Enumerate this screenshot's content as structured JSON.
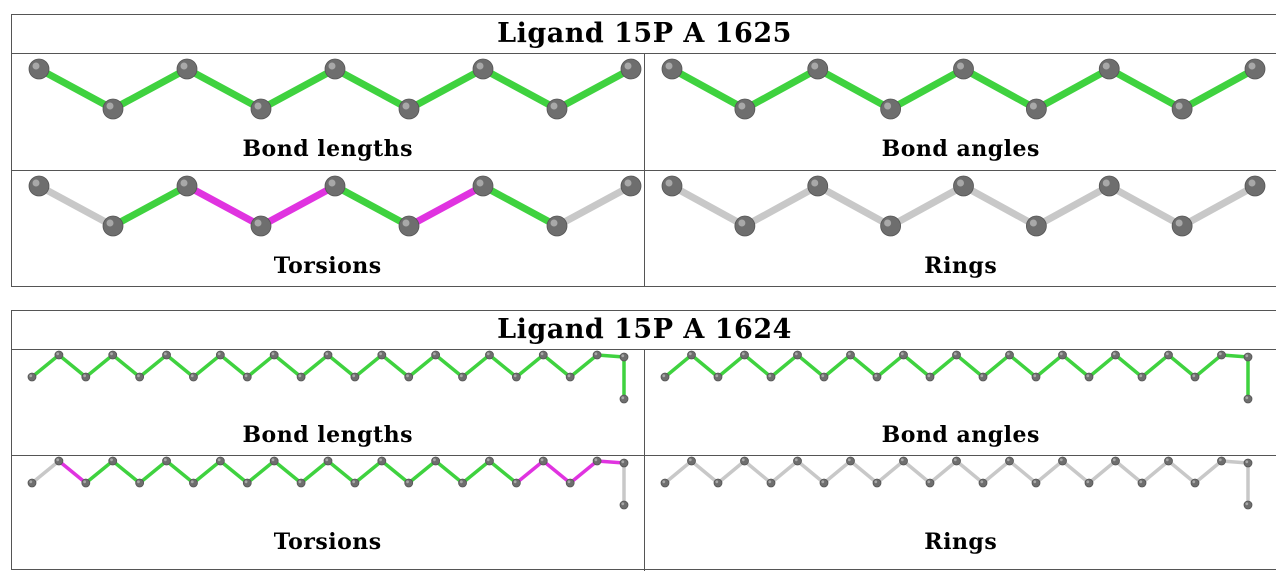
{
  "tables": [
    {
      "title": "Ligand 15P A 1625",
      "panels": [
        {
          "label": "Bond lengths",
          "bonds": [
            "green",
            "green",
            "green",
            "green",
            "green",
            "green",
            "green",
            "green"
          ],
          "tail": false
        },
        {
          "label": "Bond angles",
          "bonds": [
            "green",
            "green",
            "green",
            "green",
            "green",
            "green",
            "green",
            "green"
          ],
          "tail": false
        },
        {
          "label": "Torsions",
          "bonds": [
            "grey",
            "green",
            "magenta",
            "magenta",
            "green",
            "magenta",
            "green",
            "grey"
          ],
          "tail": false
        },
        {
          "label": "Rings",
          "bonds": [
            "grey",
            "grey",
            "grey",
            "grey",
            "grey",
            "grey",
            "grey",
            "grey"
          ],
          "tail": false
        }
      ]
    },
    {
      "title": "Ligand 15P A 1624",
      "panels": [
        {
          "label": "Bond lengths",
          "bonds": [
            "green",
            "green",
            "green",
            "green",
            "green",
            "green",
            "green",
            "green",
            "green",
            "green",
            "green",
            "green",
            "green",
            "green",
            "green",
            "green",
            "green",
            "green",
            "green",
            "green",
            "green",
            "green"
          ],
          "tail": true
        },
        {
          "label": "Bond angles",
          "bonds": [
            "green",
            "green",
            "green",
            "green",
            "green",
            "green",
            "green",
            "green",
            "green",
            "green",
            "green",
            "green",
            "green",
            "green",
            "green",
            "green",
            "green",
            "green",
            "green",
            "green",
            "green",
            "green"
          ],
          "tail": true
        },
        {
          "label": "Torsions",
          "bonds": [
            "grey",
            "magenta",
            "green",
            "green",
            "green",
            "green",
            "green",
            "green",
            "green",
            "green",
            "green",
            "green",
            "green",
            "green",
            "green",
            "green",
            "green",
            "green",
            "magenta",
            "magenta",
            "magenta",
            "magenta"
          ],
          "tail": true
        },
        {
          "label": "Rings",
          "bonds": [
            "grey",
            "grey",
            "grey",
            "grey",
            "grey",
            "grey",
            "grey",
            "grey",
            "grey",
            "grey",
            "grey",
            "grey",
            "grey",
            "grey",
            "grey",
            "grey",
            "grey",
            "grey",
            "grey",
            "grey",
            "grey",
            "grey"
          ],
          "tail": true
        }
      ]
    }
  ],
  "colors": {
    "green": "#3fd23f",
    "magenta": "#e033e0",
    "grey": "#c8c8c8",
    "atom": "#6e6e6e"
  }
}
